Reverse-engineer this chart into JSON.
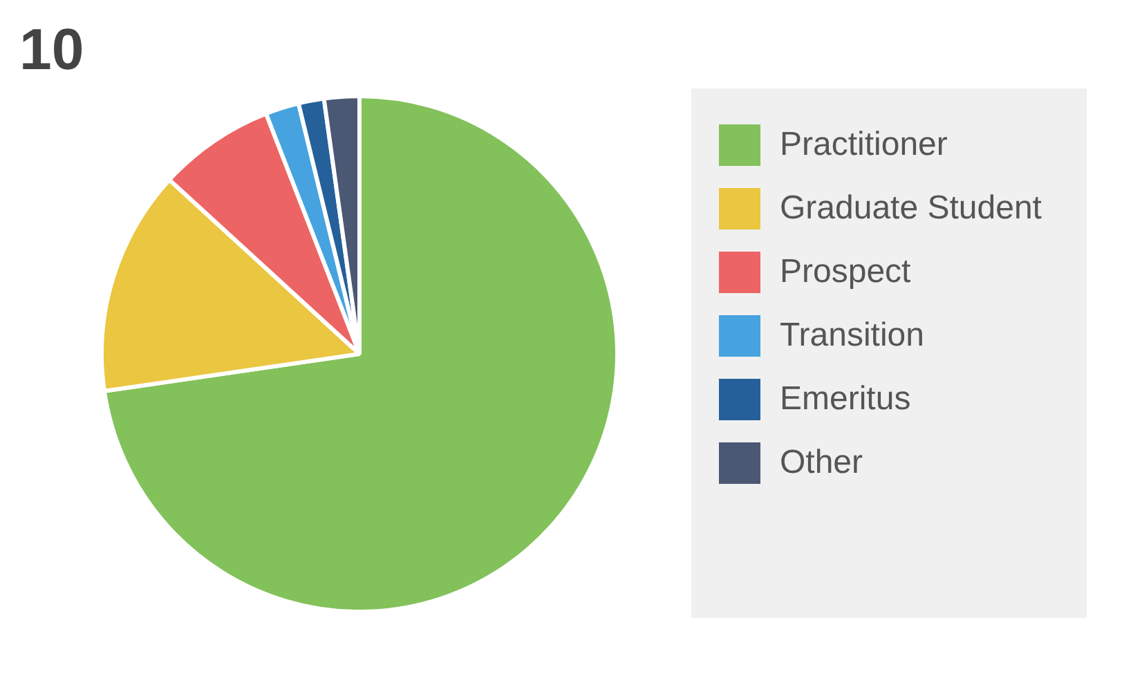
{
  "chart_data": {
    "type": "pie",
    "title": "10",
    "categories": [
      "Practitioner",
      "Graduate Student",
      "Prospect",
      "Transition",
      "Emeritus",
      "Other"
    ],
    "values": [
      72.7,
      14.1,
      7.3,
      2.1,
      1.6,
      2.2
    ],
    "colors": [
      "#83c15b",
      "#eac641",
      "#ed6464",
      "#46a3e0",
      "#25609a",
      "#4b5874"
    ],
    "legend": "right"
  }
}
